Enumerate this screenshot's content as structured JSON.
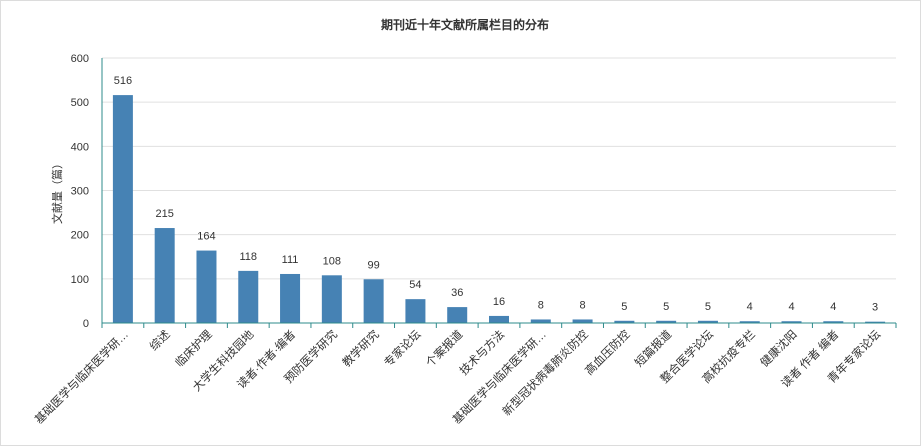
{
  "chart_data": {
    "type": "bar",
    "title": "期刊近十年文献所属栏目的分布",
    "xlabel": "",
    "ylabel": "文献量（篇）",
    "ylim": [
      0,
      600
    ],
    "yticks": [
      0,
      100,
      200,
      300,
      400,
      500,
      600
    ],
    "grid": true,
    "bar_color": "#4682b4",
    "axis_color": "#2e8b8b",
    "categories": [
      "基础医学与临床医学研…",
      "综述",
      "临床护理",
      "大学生科技园地",
      "读者·作者·编者",
      "预防医学研究",
      "教学研究",
      "专家论坛",
      "个案报道",
      "技术与方法",
      "基础医学与临床医学研…",
      "新型冠状病毒肺炎防控",
      "高血压防控",
      "短篇报道",
      "整合医学论坛",
      "高校抗疫专栏",
      "健康沈阳",
      "读者 作者 编者",
      "青年专家论坛"
    ],
    "values": [
      516,
      215,
      164,
      118,
      111,
      108,
      99,
      54,
      36,
      16,
      8,
      8,
      5,
      5,
      5,
      4,
      4,
      4,
      3
    ]
  }
}
